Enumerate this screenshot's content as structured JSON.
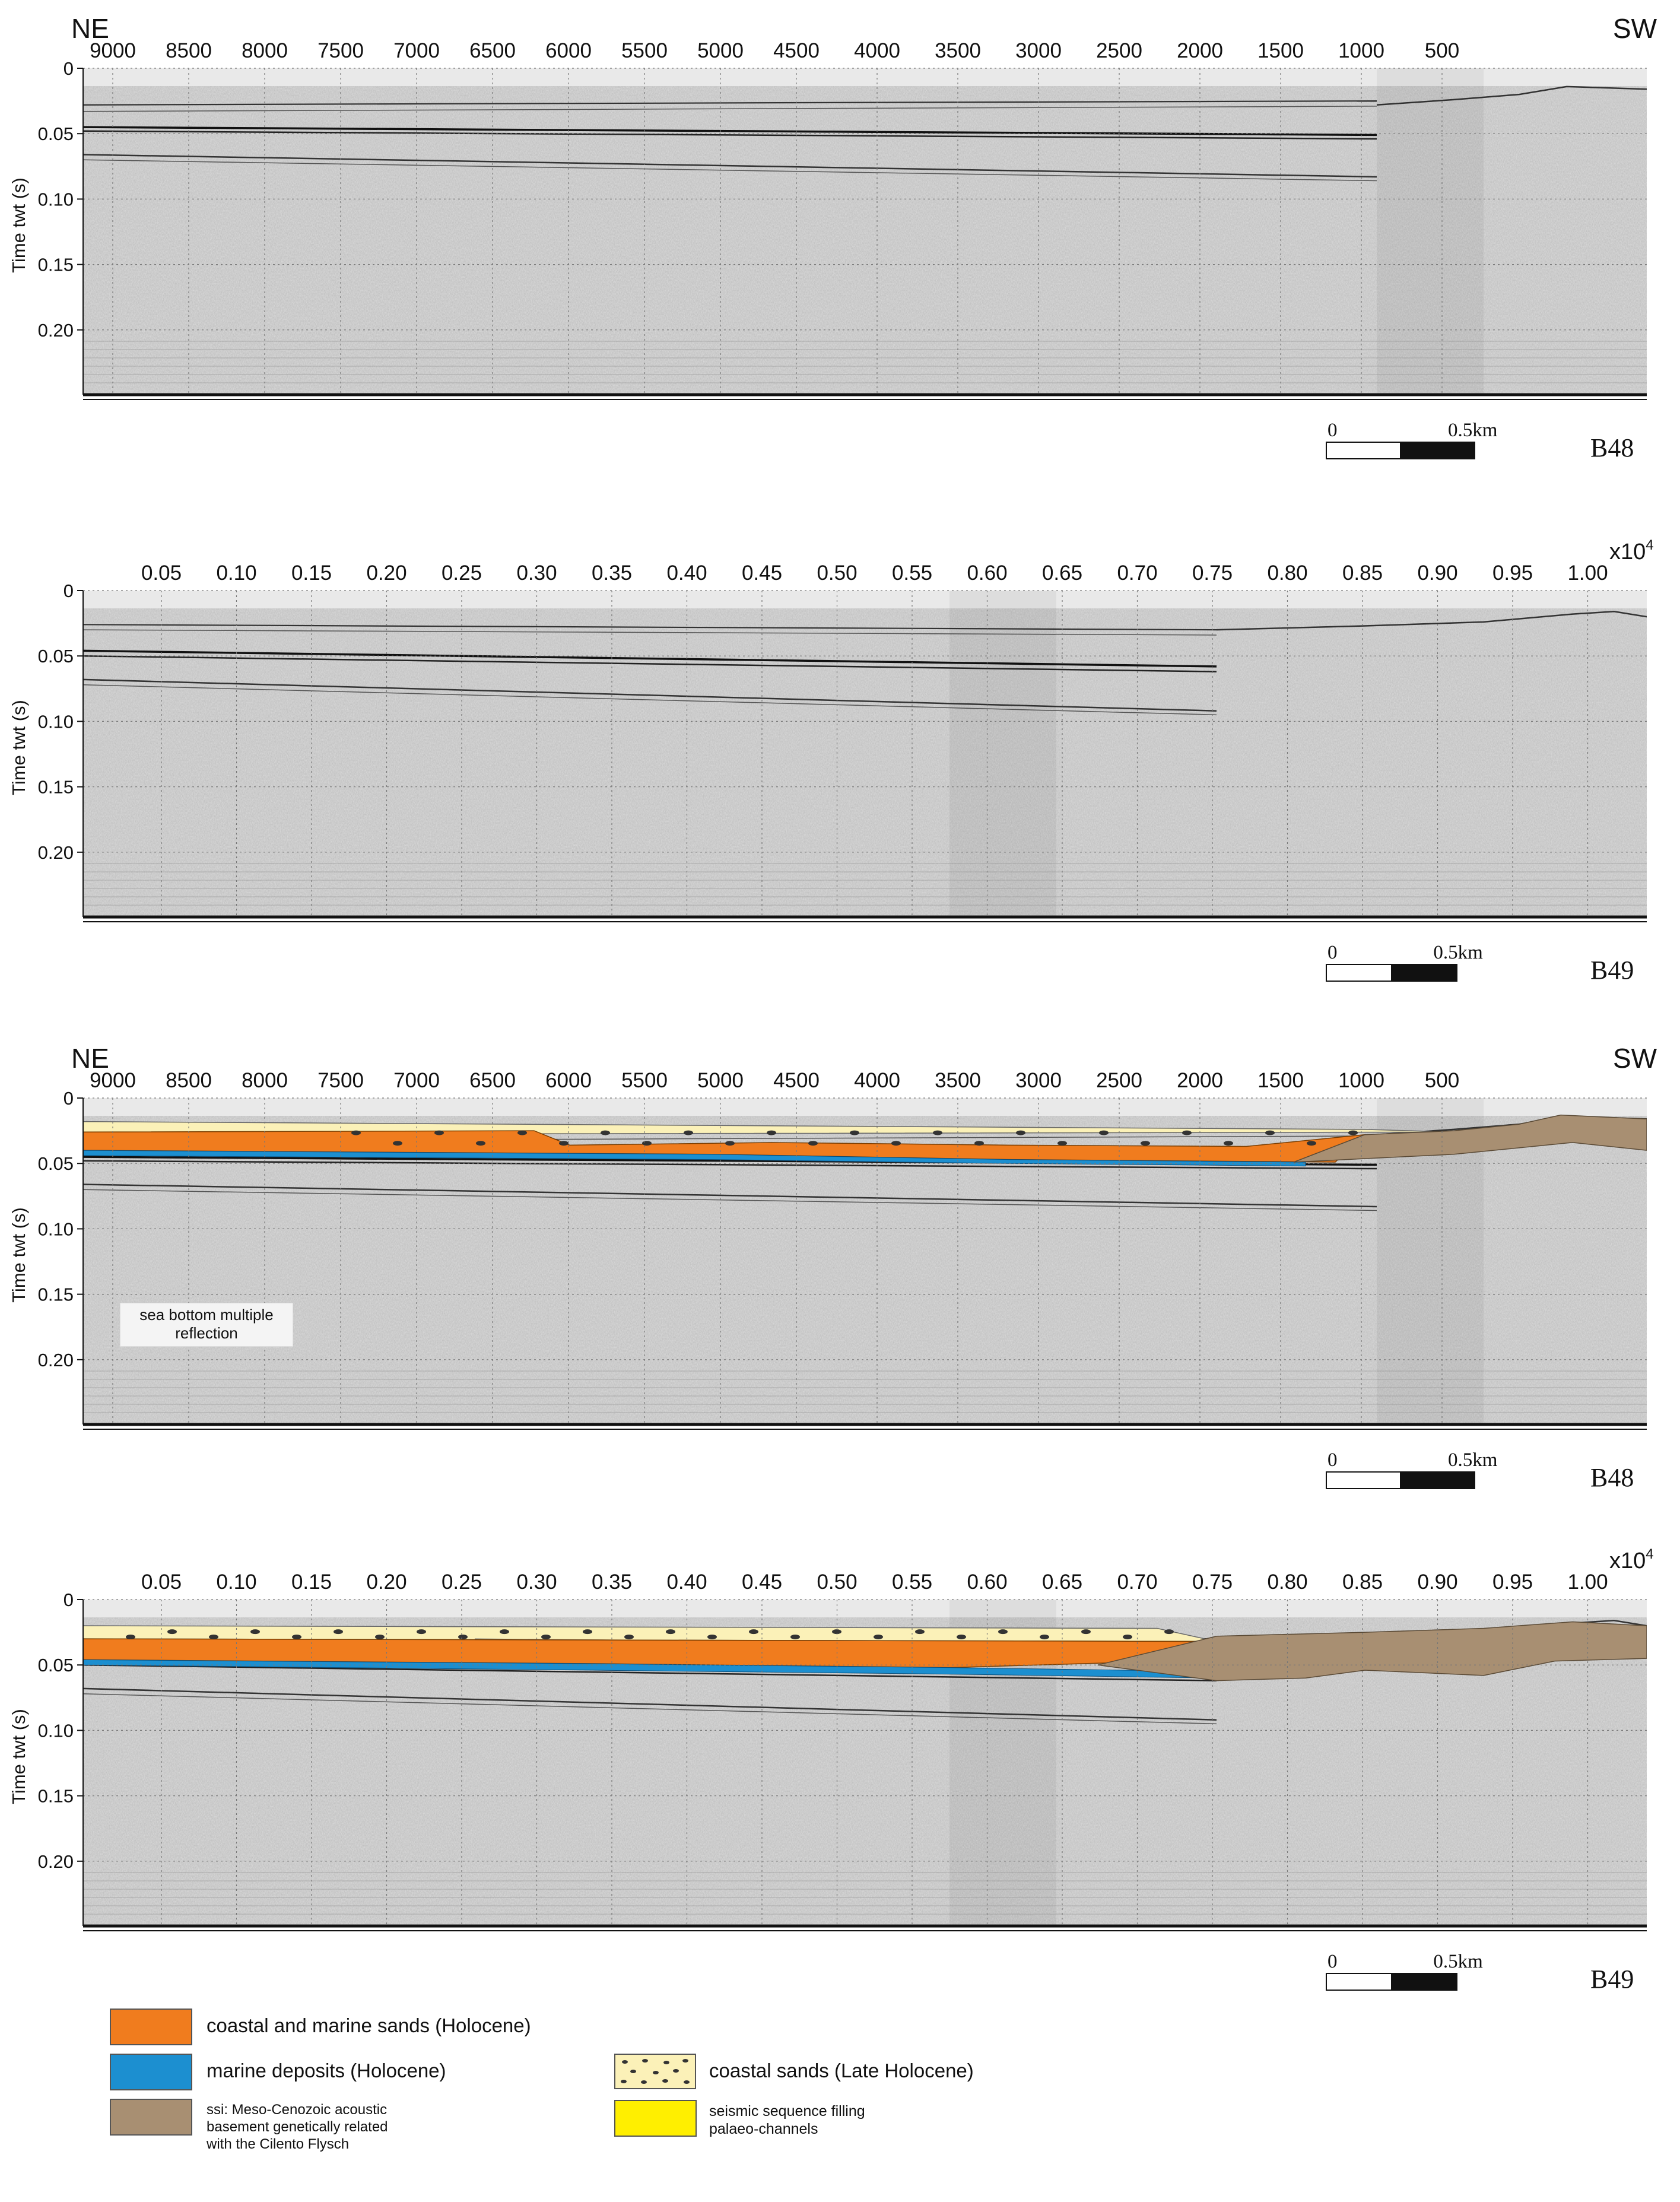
{
  "panels": [
    {
      "id": "p1",
      "axis_type": "distance",
      "left_dir": "NE",
      "right_dir": "SW",
      "exponent_label": "",
      "x_ticks": [
        "9000",
        "8500",
        "8000",
        "7500",
        "7000",
        "6500",
        "6000",
        "5500",
        "5000",
        "4500",
        "4000",
        "3500",
        "3000",
        "2500",
        "2000",
        "1500",
        "1000",
        "500"
      ],
      "y_label": "Time twt (s)",
      "y_ticks": [
        "0",
        "0.05",
        "0.10",
        "0.15",
        "0.20"
      ],
      "scale_start": "0",
      "scale_end": "0.5km",
      "profile_label": "B48",
      "interpreted": false
    },
    {
      "id": "p2",
      "axis_type": "fraction",
      "left_dir": "",
      "right_dir": "",
      "exponent_label": "x10",
      "exponent_power": "4",
      "x_ticks": [
        "0.05",
        "0.10",
        "0.15",
        "0.20",
        "0.25",
        "0.30",
        "0.35",
        "0.40",
        "0.45",
        "0.50",
        "0.55",
        "0.60",
        "0.65",
        "0.70",
        "0.75",
        "0.80",
        "0.85",
        "0.90",
        "0.95",
        "1.00"
      ],
      "y_label": "Time twt (s)",
      "y_ticks": [
        "0",
        "0.05",
        "0.10",
        "0.15",
        "0.20"
      ],
      "scale_start": "0",
      "scale_end": "0.5km",
      "profile_label": "B49",
      "interpreted": false
    },
    {
      "id": "p3",
      "axis_type": "distance",
      "left_dir": "NE",
      "right_dir": "SW",
      "exponent_label": "",
      "x_ticks": [
        "9000",
        "8500",
        "8000",
        "7500",
        "7000",
        "6500",
        "6000",
        "5500",
        "5000",
        "4500",
        "4000",
        "3500",
        "3000",
        "2500",
        "2000",
        "1500",
        "1000",
        "500"
      ],
      "y_label": "Time twt (s)",
      "y_ticks": [
        "0",
        "0.05",
        "0.10",
        "0.15",
        "0.20"
      ],
      "scale_start": "0",
      "scale_end": "0.5km",
      "profile_label": "B48",
      "interpreted": true,
      "annotation": "sea bottom multiple reflection"
    },
    {
      "id": "p4",
      "axis_type": "fraction",
      "left_dir": "",
      "right_dir": "",
      "exponent_label": "x10",
      "exponent_power": "4",
      "x_ticks": [
        "0.05",
        "0.10",
        "0.15",
        "0.20",
        "0.25",
        "0.30",
        "0.35",
        "0.40",
        "0.45",
        "0.50",
        "0.55",
        "0.60",
        "0.65",
        "0.70",
        "0.75",
        "0.80",
        "0.85",
        "0.90",
        "0.95",
        "1.00"
      ],
      "y_label": "Time twt (s)",
      "y_ticks": [
        "0",
        "0.05",
        "0.10",
        "0.15",
        "0.20"
      ],
      "scale_start": "0",
      "scale_end": "0.5km",
      "profile_label": "B49",
      "interpreted": true
    }
  ],
  "legend": [
    {
      "key": "coastal_marine_sands",
      "label": "coastal and marine sands (Holocene)",
      "color": "#f07c1e",
      "pattern": "solid"
    },
    {
      "key": "marine_deposits",
      "label": "marine deposits (Holocene)",
      "color": "#1c8fd0",
      "pattern": "solid"
    },
    {
      "key": "acoustic_basement",
      "label": "ssi: Meso-Cenozoic acoustic basement genetically related with the Cilento Flysch",
      "color": "#a88f72",
      "pattern": "solid"
    },
    {
      "key": "coastal_sands_late",
      "label": "coastal sands (Late Holocene)",
      "color": "#fbf1b8",
      "pattern": "dots"
    },
    {
      "key": "palaeo_channels",
      "label": "seismic sequence filling palaeo-channels",
      "color": "#ffef00",
      "pattern": "solid"
    }
  ]
}
